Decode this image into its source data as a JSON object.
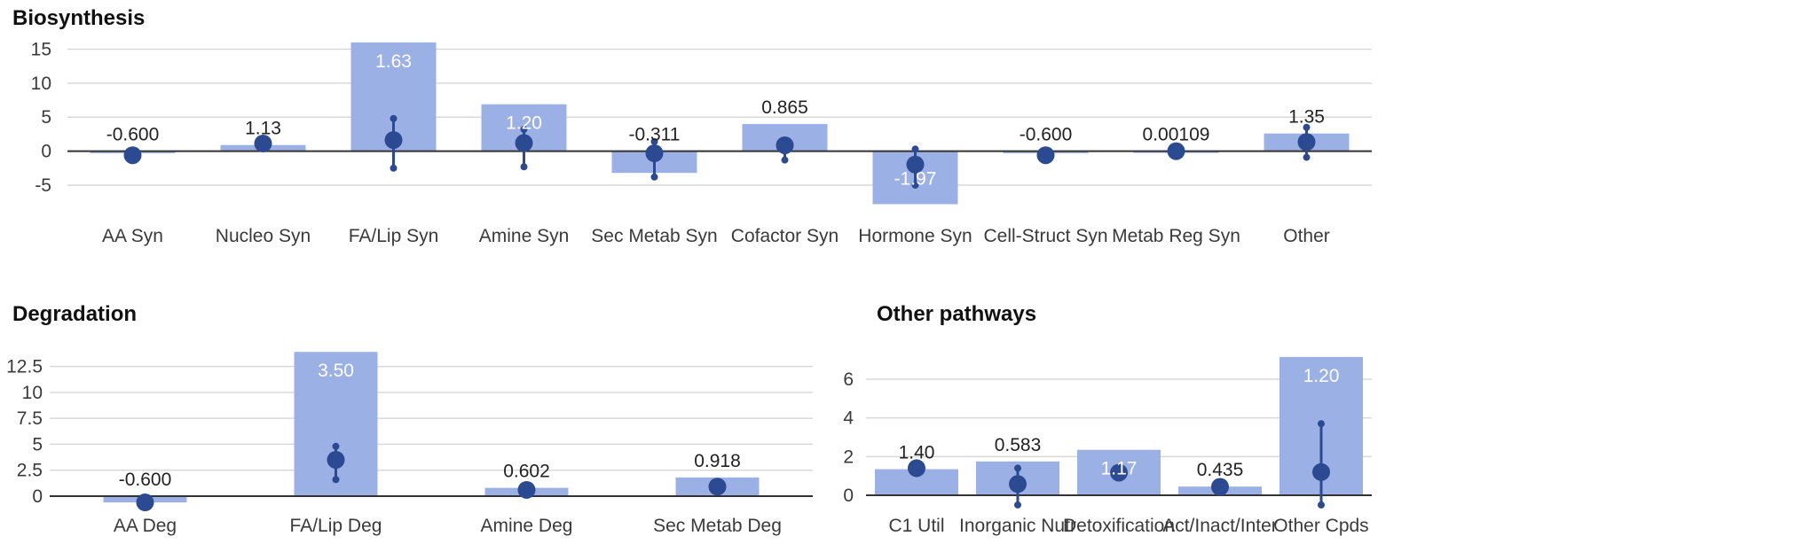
{
  "colors": {
    "bar": "#9bb1e6",
    "point": "#2c4a91",
    "grid": "#d9d9d9",
    "axis": "#333333",
    "label_dark": "#222222",
    "label_light": "#ffffff"
  },
  "chart_data": [
    {
      "type": "bar",
      "title": "Biosynthesis",
      "xlabel": "",
      "ylabel": "",
      "ylim": [
        -8,
        16.5
      ],
      "yticks": [
        15,
        10,
        5,
        0,
        -5
      ],
      "ytick_labels": [
        "15",
        "10",
        "5",
        "0",
        "-5"
      ],
      "grid": true,
      "categories": [
        "AA Syn",
        "Nucleo Syn",
        "FA/Lip Syn",
        "Amine Syn",
        "Sec Metab Syn",
        "Cofactor Syn",
        "Hormone Syn",
        "Cell-Struct Syn",
        "Metab Reg Syn",
        "Other"
      ],
      "values": [
        -0.3,
        0.9,
        16.0,
        6.9,
        -3.2,
        4.0,
        -7.8,
        -0.3,
        0.0,
        2.6
      ],
      "points": [
        -0.6,
        1.13,
        1.63,
        1.2,
        -0.311,
        0.865,
        -1.97,
        -0.6,
        0.00109,
        1.35
      ],
      "ranges": [
        [
          -0.6,
          -0.6
        ],
        [
          0.6,
          1.6
        ],
        [
          -2.5,
          4.8
        ],
        [
          -2.3,
          3.2
        ],
        [
          -3.8,
          1.4
        ],
        [
          -1.3,
          1.3
        ],
        [
          -5.0,
          0.3
        ],
        [
          -0.6,
          -0.6
        ],
        [
          0.0,
          0.0
        ],
        [
          -0.9,
          3.5
        ]
      ],
      "data_labels": [
        "-0.600",
        "1.13",
        "1.63",
        "1.20",
        "-0.311",
        "0.865",
        "-1.97",
        "-0.600",
        "0.00109",
        "1.35"
      ]
    },
    {
      "type": "bar",
      "title": "Degradation",
      "xlabel": "",
      "ylabel": "",
      "ylim": [
        0,
        14
      ],
      "yticks": [
        12.5,
        10,
        7.5,
        5,
        2.5,
        0
      ],
      "ytick_labels": [
        "12.5",
        "10",
        "7.5",
        "5",
        "2.5",
        "0"
      ],
      "grid": true,
      "categories": [
        "AA Deg",
        "FA/Lip Deg",
        "Amine Deg",
        "Sec Metab Deg"
      ],
      "values": [
        -0.6,
        13.9,
        0.8,
        1.8
      ],
      "points": [
        -0.6,
        3.5,
        0.602,
        0.918
      ],
      "ranges": [
        [
          -0.6,
          -0.6
        ],
        [
          1.6,
          4.8
        ],
        [
          0.6,
          0.6
        ],
        [
          0.9,
          0.9
        ]
      ],
      "data_labels": [
        "-0.600",
        "3.50",
        "0.602",
        "0.918"
      ]
    },
    {
      "type": "bar",
      "title": "Other pathways",
      "xlabel": "",
      "ylabel": "",
      "ylim": [
        0,
        7.1
      ],
      "yticks": [
        6,
        4,
        2,
        0
      ],
      "ytick_labels": [
        "6",
        "4",
        "2",
        "0"
      ],
      "grid": true,
      "categories": [
        "C1 Util",
        "Inorganic Nutr",
        "Detoxification",
        "Act/Inact/Inter",
        "Other Cpds"
      ],
      "values": [
        1.35,
        1.75,
        2.35,
        0.45,
        7.15
      ],
      "points": [
        1.4,
        0.583,
        1.17,
        0.435,
        1.2
      ],
      "ranges": [
        [
          1.4,
          1.4
        ],
        [
          -0.5,
          1.4
        ],
        [
          1.17,
          1.17
        ],
        [
          0.435,
          0.435
        ],
        [
          -0.5,
          3.7
        ]
      ],
      "data_labels": [
        "1.40",
        "0.583",
        "1.17",
        "0.435",
        "1.20"
      ]
    }
  ]
}
